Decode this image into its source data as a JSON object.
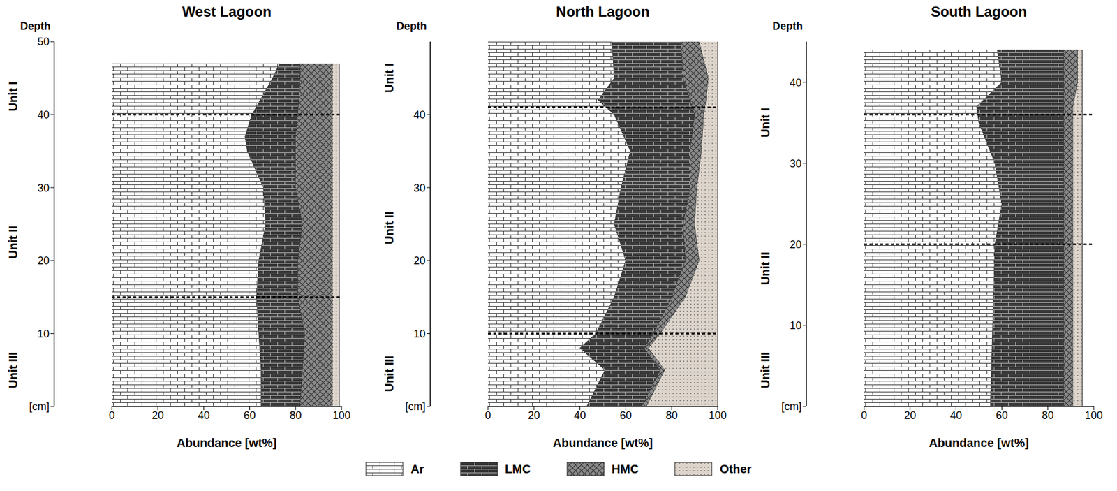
{
  "chart_data": [
    {
      "type": "area",
      "title": "West Lagoon",
      "orientation": "horizontal",
      "stacked": true,
      "legend": "bottom",
      "x_label": "Abundance [wt%]",
      "y_label": "Depth",
      "xlim": [
        0,
        100
      ],
      "xticks": [
        0,
        20,
        40,
        60,
        80,
        100
      ],
      "ylim": [
        0,
        50
      ],
      "yticks": [
        {
          "value": 0,
          "label": "[cm]"
        },
        10,
        20,
        30,
        40,
        50
      ],
      "units": [
        "Unit I",
        "Unit II",
        "Unit III"
      ],
      "unit_boundaries": [
        15,
        40
      ],
      "y": [
        0,
        5,
        10,
        15,
        20,
        25,
        30,
        35,
        37,
        40,
        45,
        47
      ],
      "series": [
        {
          "name": "Ar",
          "color": "#ffffff",
          "values": [
            65,
            65,
            64,
            63,
            64,
            67,
            66,
            59,
            58,
            61,
            70,
            73
          ]
        },
        {
          "name": "LMC",
          "color": "#3a3a3a",
          "values": [
            17,
            18,
            20,
            18,
            17,
            16,
            14,
            21,
            22,
            20,
            12,
            9
          ]
        },
        {
          "name": "HMC",
          "color": "#8a8a8a",
          "values": [
            14,
            13,
            12,
            15,
            15,
            13,
            16,
            16,
            16,
            15,
            14,
            14
          ]
        },
        {
          "name": "Other",
          "color": "#ddd5cc",
          "values": [
            3,
            3,
            3,
            3,
            3,
            3,
            3,
            3,
            3,
            3,
            3,
            3
          ]
        }
      ]
    },
    {
      "type": "area",
      "title": "North Lagoon",
      "orientation": "horizontal",
      "stacked": true,
      "legend": "bottom",
      "x_label": "Abundance [wt%]",
      "y_label": "Depth",
      "xlim": [
        0,
        100
      ],
      "xticks": [
        0,
        20,
        40,
        60,
        80,
        100
      ],
      "ylim": [
        0,
        50
      ],
      "yticks": [
        {
          "value": 0,
          "label": "[cm]"
        },
        10,
        20,
        30,
        40
      ],
      "units": [
        "Unit I",
        "Unit II",
        "Unit III"
      ],
      "unit_boundaries": [
        10,
        41
      ],
      "y": [
        0,
        5,
        8,
        10,
        15,
        20,
        25,
        30,
        35,
        40,
        42,
        45,
        50
      ],
      "series": [
        {
          "name": "Ar",
          "color": "#ffffff",
          "values": [
            43,
            51,
            40,
            47,
            55,
            60,
            55,
            58,
            62,
            55,
            48,
            55,
            54
          ]
        },
        {
          "name": "LMC",
          "color": "#3a3a3a",
          "values": [
            24,
            24,
            28,
            25,
            25,
            26,
            30,
            30,
            26,
            35,
            40,
            30,
            30
          ]
        },
        {
          "name": "HMC",
          "color": "#8a8a8a",
          "values": [
            2,
            2,
            2,
            3,
            6,
            6,
            5,
            3,
            5,
            4,
            7,
            11,
            8
          ]
        },
        {
          "name": "Other",
          "color": "#ddd5cc",
          "values": [
            31,
            23,
            30,
            25,
            14,
            8,
            10,
            9,
            7,
            6,
            5,
            4,
            8
          ]
        }
      ]
    },
    {
      "type": "area",
      "title": "South Lagoon",
      "orientation": "horizontal",
      "stacked": true,
      "legend": "bottom",
      "x_label": "Abundance [wt%]",
      "y_label": "Depth",
      "xlim": [
        0,
        100
      ],
      "xticks": [
        0,
        20,
        40,
        60,
        80,
        100
      ],
      "ylim": [
        0,
        45
      ],
      "yticks": [
        {
          "value": 0,
          "label": "[cm]"
        },
        10,
        20,
        30,
        40
      ],
      "units": [
        "Unit I",
        "Unit II",
        "Unit III"
      ],
      "unit_boundaries": [
        20,
        36
      ],
      "y": [
        0,
        10,
        20,
        25,
        30,
        35,
        37,
        40,
        44
      ],
      "series": [
        {
          "name": "Ar",
          "color": "#ffffff",
          "values": [
            55,
            56,
            57,
            60,
            57,
            50,
            49,
            60,
            58
          ]
        },
        {
          "name": "LMC",
          "color": "#3a3a3a",
          "values": [
            32,
            31,
            30,
            27,
            30,
            37,
            38,
            27,
            29
          ]
        },
        {
          "name": "HMC",
          "color": "#8a8a8a",
          "values": [
            4,
            4,
            4,
            4,
            4,
            4,
            4,
            6,
            6
          ]
        },
        {
          "name": "Other",
          "color": "#ddd5cc",
          "values": [
            4,
            4,
            4,
            4,
            4,
            4,
            4,
            2,
            2
          ]
        }
      ]
    }
  ]
}
